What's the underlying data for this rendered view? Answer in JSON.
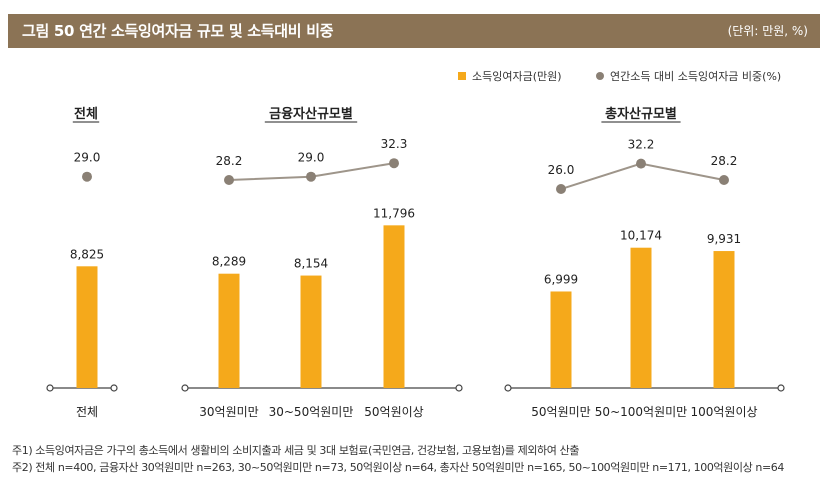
{
  "header": {
    "title": "그림 50  연간 소득잉여자금 규모 및 소득대비 비중",
    "unit": "(단위: 만원, %)"
  },
  "colors": {
    "bar": "#f5a91b",
    "line": "#9e958a",
    "marker": "#8a8075",
    "header_bg": "#8b7355",
    "axis": "#444444"
  },
  "chart_data": {
    "type": "bar+line",
    "legend": [
      {
        "label": "소득잉여자금(만원)",
        "kind": "bar"
      },
      {
        "label": "연간소득 대비 소득잉여자금 비중(%)",
        "kind": "line"
      }
    ],
    "groups": [
      {
        "title": "전체",
        "categories": [
          "전체"
        ],
        "values": [
          8825
        ],
        "value_labels": [
          "8,825"
        ],
        "ratios": [
          29.0
        ],
        "ratio_labels": [
          "29.0"
        ]
      },
      {
        "title": "금융자산규모별",
        "categories": [
          "30억원미만",
          "30~50억원미만",
          "50억원이상"
        ],
        "values": [
          8289,
          8154,
          11796
        ],
        "value_labels": [
          "8,289",
          "8,154",
          "11,796"
        ],
        "ratios": [
          28.2,
          29.0,
          32.3
        ],
        "ratio_labels": [
          "28.2",
          "29.0",
          "32.3"
        ]
      },
      {
        "title": "총자산규모별",
        "categories": [
          "50억원미만",
          "50~100억원미만",
          "100억원이상"
        ],
        "values": [
          6999,
          10174,
          9931
        ],
        "value_labels": [
          "6,999",
          "10,174",
          "9,931"
        ],
        "ratios": [
          26.0,
          32.2,
          28.2
        ],
        "ratio_labels": [
          "26.0",
          "32.2",
          "28.2"
        ]
      }
    ]
  },
  "notes": [
    "주1) 소득잉여자금은 가구의 총소득에서 생활비의 소비지출과 세금 및 3대 보험료(국민연금, 건강보험, 고용보험)를 제외하여 산출",
    "주2) 전체 n=400, 금융자산 30억원미만 n=263, 30~50억원미만 n=73, 50억원이상 n=64, 총자산 50억원미만 n=165, 50~100억원미만 n=171, 100억원이상 n=64"
  ]
}
